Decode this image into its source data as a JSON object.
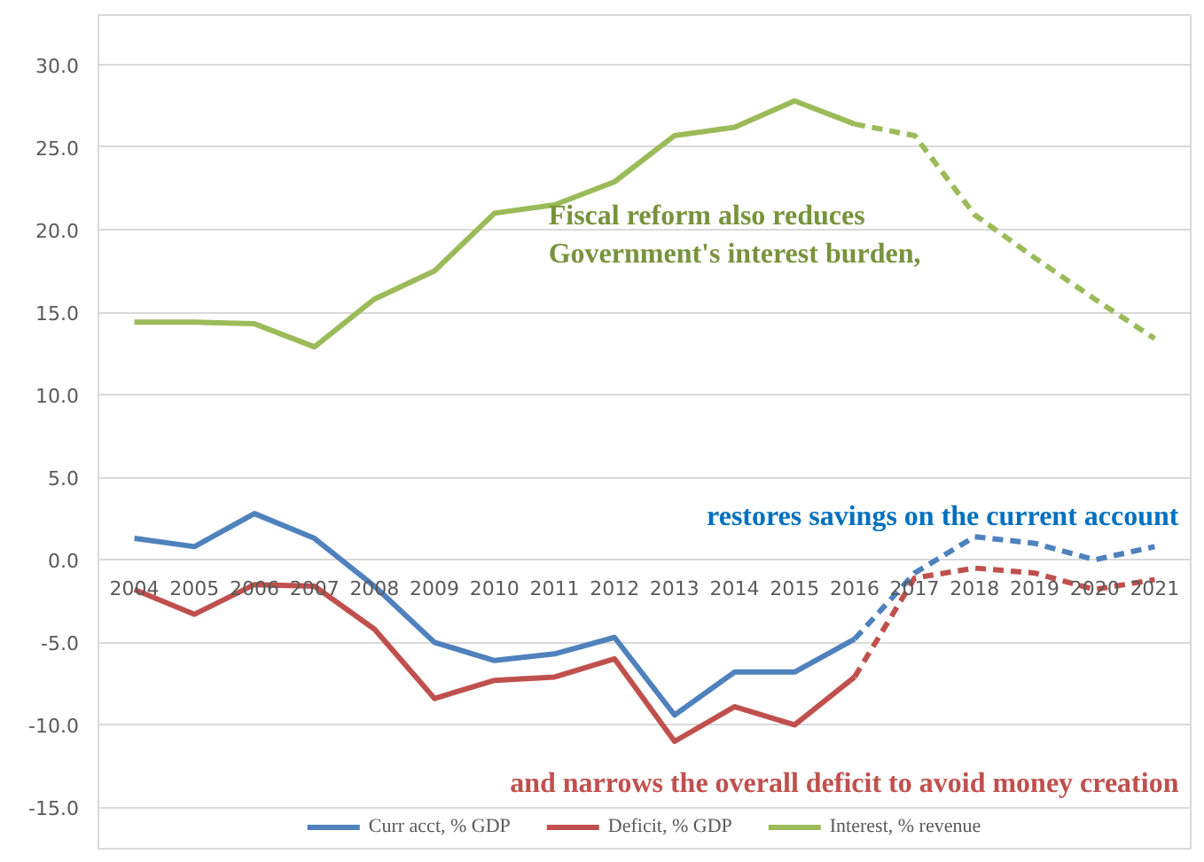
{
  "chart_data": {
    "type": "line",
    "categories": [
      "2004",
      "2005",
      "2006",
      "2007",
      "2008",
      "2009",
      "2010",
      "2011",
      "2012",
      "2013",
      "2014",
      "2015",
      "2016",
      "2017",
      "2018",
      "2019",
      "2020",
      "2021"
    ],
    "series": [
      {
        "name": "Curr acct, % GDP",
        "color": "#4f81bd",
        "line_style": "solid",
        "values": [
          1.3,
          0.8,
          2.8,
          1.3,
          -1.6,
          -5.0,
          -6.1,
          -5.7,
          -4.7,
          -9.4,
          -6.8,
          -6.8,
          -4.8,
          null,
          null,
          null,
          null,
          null
        ]
      },
      {
        "name": "Deficit, % GDP",
        "color": "#c0504d",
        "line_style": "solid",
        "values": [
          -1.8,
          -3.3,
          -1.5,
          -1.6,
          -4.2,
          -8.4,
          -7.3,
          -7.1,
          -6.0,
          -11.0,
          -8.9,
          -10.0,
          -7.1,
          null,
          null,
          null,
          null,
          null
        ]
      },
      {
        "name": "Interest, % revenue",
        "color": "#9bbb59",
        "line_style": "solid",
        "values": [
          14.4,
          14.4,
          14.3,
          12.9,
          15.8,
          17.5,
          21.0,
          21.5,
          22.9,
          25.7,
          26.2,
          27.8,
          26.4,
          null,
          null,
          null,
          null,
          null
        ]
      },
      {
        "color": "#4f81bd",
        "line_style": "dashed",
        "values": [
          null,
          null,
          null,
          null,
          null,
          null,
          null,
          null,
          null,
          null,
          null,
          null,
          -4.8,
          -0.8,
          1.4,
          1.0,
          0.0,
          0.8
        ]
      },
      {
        "color": "#c0504d",
        "line_style": "dashed",
        "values": [
          null,
          null,
          null,
          null,
          null,
          null,
          null,
          null,
          null,
          null,
          null,
          null,
          -7.1,
          -1.1,
          -0.5,
          -0.8,
          -1.8,
          -1.2
        ]
      },
      {
        "color": "#9bbb59",
        "line_style": "dashed",
        "values": [
          null,
          null,
          null,
          null,
          null,
          null,
          null,
          null,
          null,
          null,
          null,
          null,
          26.4,
          25.7,
          20.9,
          18.3,
          15.8,
          13.4
        ]
      }
    ],
    "ylim": [
      -17.5,
      33
    ],
    "yticks": [
      {
        "value": -15,
        "label": "-15.0"
      },
      {
        "value": -10,
        "label": "-10.0"
      },
      {
        "value": -5,
        "label": "-5.0"
      },
      {
        "value": 0,
        "label": "0.0"
      },
      {
        "value": 5,
        "label": "5.0"
      },
      {
        "value": 10,
        "label": "10.0"
      },
      {
        "value": 15,
        "label": "15.0"
      },
      {
        "value": 20,
        "label": "20.0"
      },
      {
        "value": 25,
        "label": "25.0"
      },
      {
        "value": 30,
        "label": "30.0"
      }
    ],
    "grid": "y",
    "legend": "bottom",
    "marker": "none",
    "annotations": [
      "Fiscal reform also reduces\nGovernment's interest burden,",
      "restores savings on the current account",
      "and narrows the overall deficit to avoid money creation"
    ]
  }
}
